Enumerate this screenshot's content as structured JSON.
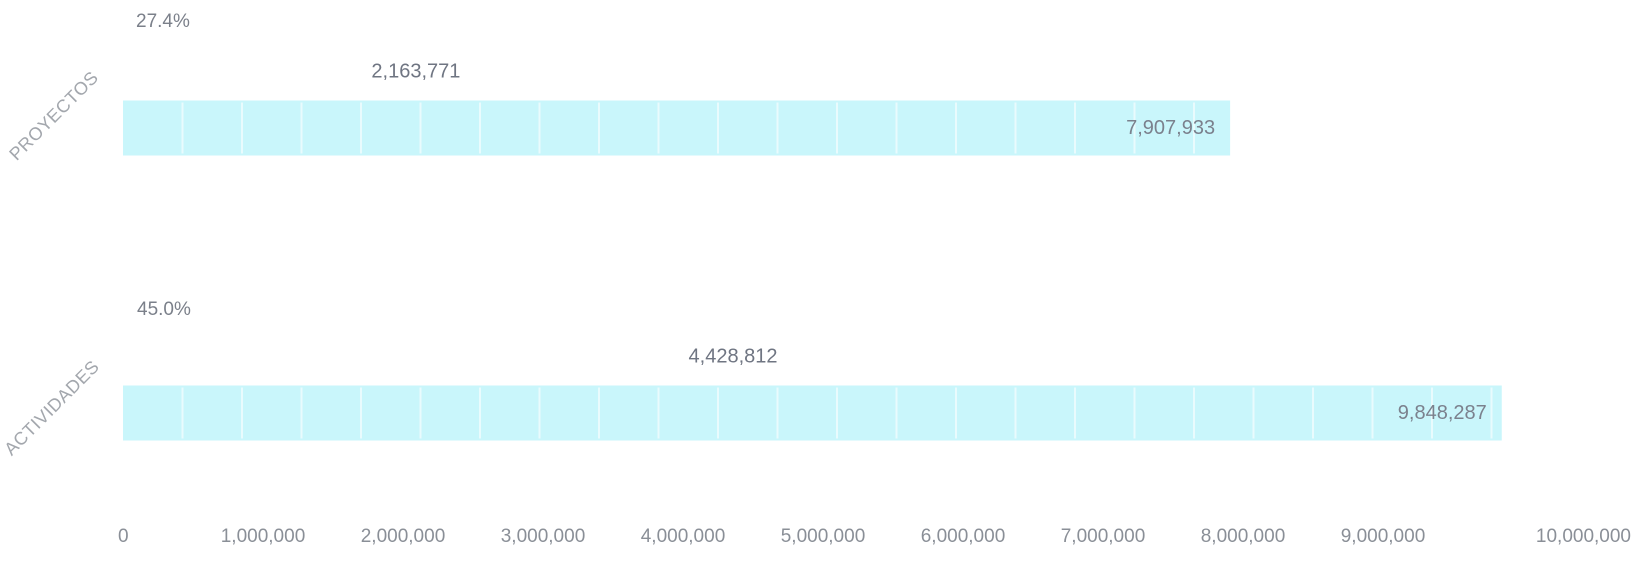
{
  "chart_data": {
    "type": "bar",
    "orientation": "horizontal",
    "categories": [
      "PROYECTOS",
      "ACTIVIDADES"
    ],
    "series": [
      {
        "values": [
          2163771,
          4428812
        ]
      },
      {
        "values": [
          7907933,
          9848287
        ]
      }
    ],
    "percent_labels": [
      "27.4%",
      "45.0%"
    ],
    "value_labels": {
      "inner": [
        "2,163,771",
        "4,428,812"
      ],
      "total": [
        "7,907,933",
        "9,848,287"
      ]
    },
    "xlim": [
      0,
      10000000
    ],
    "x_ticks": [
      0,
      1000000,
      2000000,
      3000000,
      4000000,
      5000000,
      6000000,
      7000000,
      8000000,
      9000000,
      10000000
    ],
    "x_tick_labels": [
      "0",
      "1,000,000",
      "2,000,000",
      "3,000,000",
      "4,000,000",
      "5,000,000",
      "6,000,000",
      "7,000,000",
      "8,000,000",
      "9,000,000",
      "10,000,000"
    ],
    "grid": false,
    "legend": "none",
    "colors": {
      "bar": "#c9f6fb",
      "separator": "#e9fbfd",
      "tick_text": "#8a8f97",
      "category_text": "#a3a7ad",
      "label_text": "#6f7582"
    }
  }
}
